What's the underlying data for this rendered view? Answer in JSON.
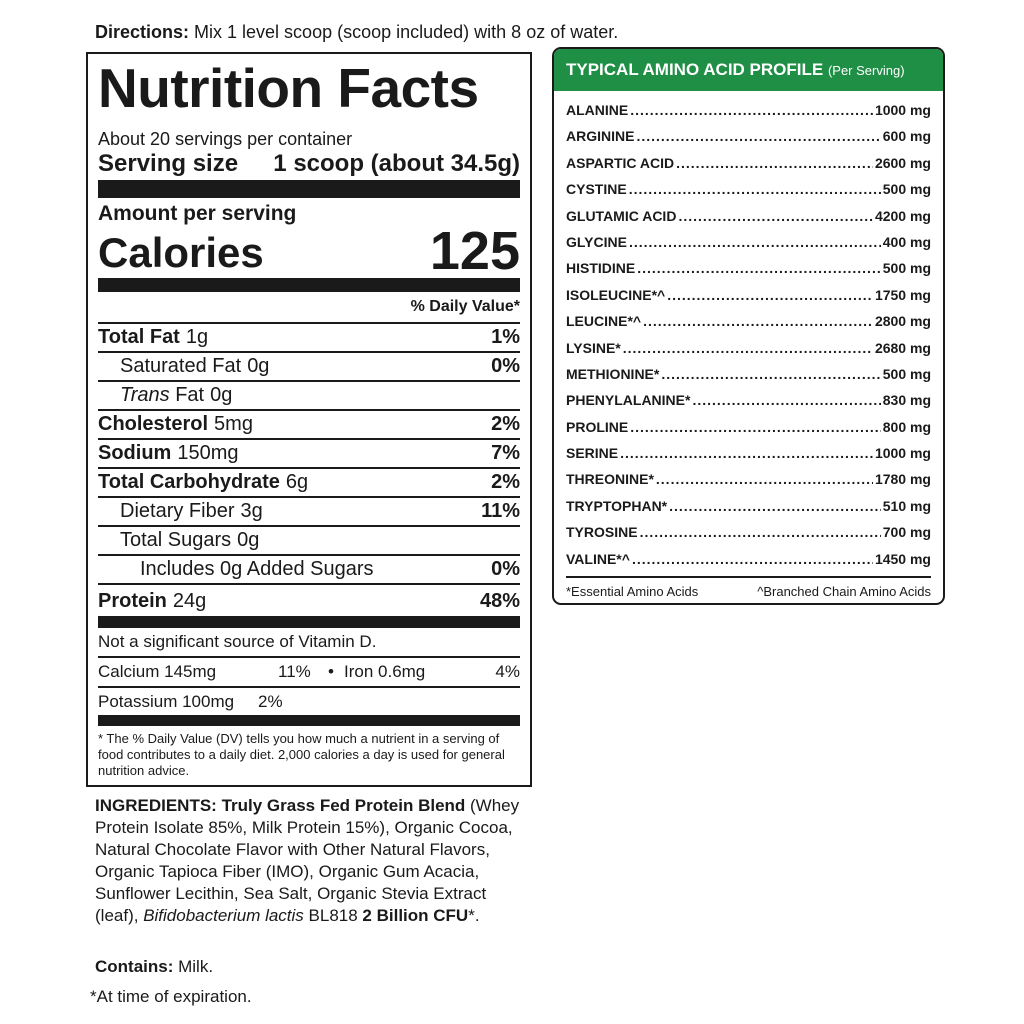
{
  "directions": {
    "label": "Directions:",
    "text": " Mix 1 level scoop (scoop included) with 8 oz of water."
  },
  "nutrition_facts": {
    "title": "Nutrition Facts",
    "servings_per_container": "About 20 servings per container",
    "serving_size_label": "Serving size",
    "serving_size_value": "1 scoop (about 34.5g)",
    "amount_per_serving": "Amount per serving",
    "calories_label": "Calories",
    "calories_value": "125",
    "daily_value_header": "% Daily Value*",
    "rows": [
      {
        "name": "Total Fat",
        "amount": "1g",
        "dv": "1%"
      },
      {
        "name": "Saturated Fat",
        "amount": "0g",
        "dv": "0%"
      },
      {
        "name": "Trans",
        "name_rest": " Fat",
        "amount": "0g",
        "dv": ""
      },
      {
        "name": "Cholesterol",
        "amount": "5mg",
        "dv": "2%"
      },
      {
        "name": "Sodium",
        "amount": "150mg",
        "dv": "7%"
      },
      {
        "name": "Total Carbohydrate",
        "amount": "6g",
        "dv": "2%"
      },
      {
        "name": "Dietary Fiber",
        "amount": "3g",
        "dv": "11%"
      },
      {
        "name": "Total Sugars",
        "amount": "0g",
        "dv": ""
      },
      {
        "name": "Includes 0g Added Sugars",
        "amount": "",
        "dv": "0%"
      },
      {
        "name": "Protein",
        "amount": "24g",
        "dv": "48%"
      }
    ],
    "vitamin_d_note": "Not a significant source of Vitamin D.",
    "calcium": "Calcium 145mg",
    "calcium_dv": "11%",
    "bullet": "•",
    "iron": "Iron 0.6mg",
    "iron_dv": "4%",
    "potassium": "Potassium 100mg",
    "potassium_dv": "2%",
    "footnote": "* The % Daily Value (DV) tells you how much a nutrient in a serving of food contributes to a daily diet. 2,000 calories a day is used for general nutrition advice."
  },
  "amino_profile": {
    "title": "TYPICAL AMINO ACID PROFILE",
    "subtitle": "(Per Serving)",
    "accent_color": "#1f8f45",
    "items": [
      {
        "name": "ALANINE",
        "amount": "1000 mg"
      },
      {
        "name": "ARGININE",
        "amount": "600 mg"
      },
      {
        "name": "ASPARTIC ACID",
        "amount": "2600 mg"
      },
      {
        "name": "CYSTINE",
        "amount": "500 mg"
      },
      {
        "name": "GLUTAMIC ACID",
        "amount": "4200 mg"
      },
      {
        "name": "GLYCINE",
        "amount": "400 mg"
      },
      {
        "name": "HISTIDINE",
        "amount": "500 mg"
      },
      {
        "name": "ISOLEUCINE*^",
        "amount": "1750 mg"
      },
      {
        "name": "LEUCINE*^",
        "amount": "2800 mg"
      },
      {
        "name": "LYSINE*",
        "amount": "2680 mg"
      },
      {
        "name": "METHIONINE*",
        "amount": "500 mg"
      },
      {
        "name": "PHENYLALANINE*",
        "amount": "830 mg"
      },
      {
        "name": "PROLINE",
        "amount": "800 mg"
      },
      {
        "name": "SERINE",
        "amount": "1000 mg"
      },
      {
        "name": "THREONINE*",
        "amount": "1780 mg"
      },
      {
        "name": "TRYPTOPHAN*",
        "amount": "510 mg"
      },
      {
        "name": "TYROSINE",
        "amount": "700 mg"
      },
      {
        "name": "VALINE*^",
        "amount": "1450 mg"
      }
    ],
    "footnote_essential": "*Essential Amino Acids",
    "footnote_bcaa": "^Branched Chain Amino Acids"
  },
  "ingredients": {
    "label": "INGREDIENTS:",
    "blend": " Truly Grass Fed Protein Blend",
    "text": " (Whey Protein Isolate 85%, Milk Protein 15%), Organic Cocoa, Natural Chocolate Flavor with Other Natural Flavors, Organic Tapioca Fiber (IMO), Organic Gum Acacia, Sunflower Lecithin, Sea Salt, Organic Stevia Extract (leaf), ",
    "probiotic": "Bifidobacterium lactis",
    "strain": " BL818 ",
    "cfu": "2 Billion CFU",
    "cfu_mark": "*."
  },
  "contains": {
    "label": "Contains:",
    "text": " Milk."
  },
  "expiry_note": "*At time of expiration."
}
